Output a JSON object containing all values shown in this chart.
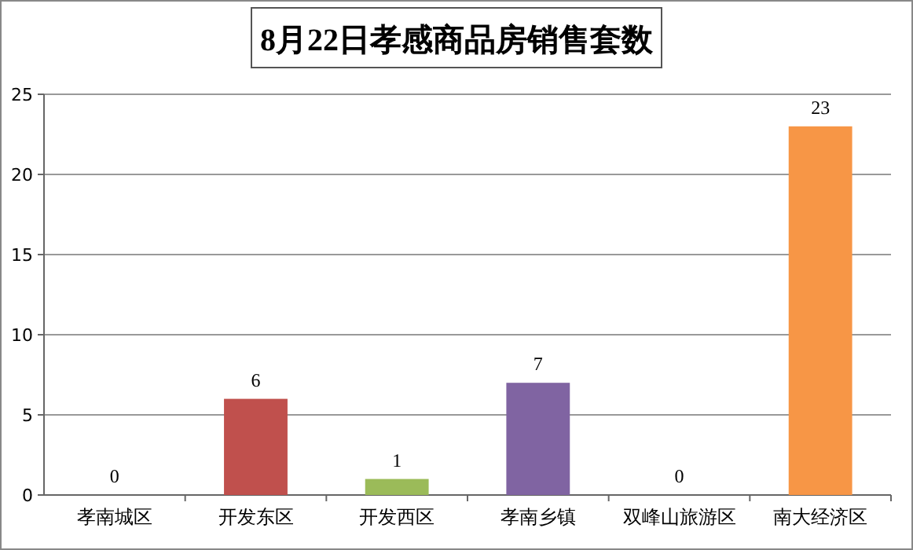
{
  "chart_data": {
    "type": "bar",
    "title": "8月22日孝感商品房销售套数",
    "categories": [
      "孝南城区",
      "开发东区",
      "开发西区",
      "孝南乡镇",
      "双峰山旅游区",
      "南大经济区"
    ],
    "values": [
      0,
      6,
      1,
      7,
      0,
      23
    ],
    "colors": [
      "#4f81bd",
      "#c0504d",
      "#9bbb59",
      "#8064a2",
      "#4bacc6",
      "#f79646"
    ],
    "ylim": [
      0,
      25
    ],
    "yticks": [
      0,
      5,
      10,
      15,
      20,
      25
    ],
    "grid": "y",
    "data_labels": true
  }
}
